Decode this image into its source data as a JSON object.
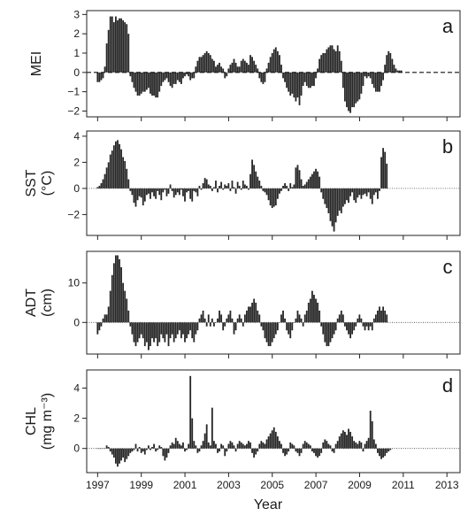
{
  "chart_data": [
    {
      "id": "a",
      "type": "bar",
      "panel_letter": "a",
      "ylabel": [
        "MEI"
      ],
      "ylim": [
        -2.3,
        3.2
      ],
      "yticks": [
        -2,
        -1,
        0,
        1,
        2,
        3
      ],
      "zero_line": "dashed",
      "series": [
        {
          "x_start": 1997.0,
          "x_step": 0.0833,
          "values": [
            -0.5,
            -0.5,
            -0.4,
            -0.3,
            0.3,
            1.5,
            2.2,
            2.9,
            2.9,
            2.6,
            2.9,
            2.7,
            2.8,
            2.8,
            2.7,
            2.6,
            2.5,
            2.0,
            -0.2,
            -0.5,
            -0.8,
            -1.0,
            -1.2,
            -1.2,
            -1.1,
            -1.0,
            -1.0,
            -0.9,
            -0.8,
            -1.1,
            -1.2,
            -1.2,
            -1.3,
            -1.3,
            -1.0,
            -0.7,
            -0.5,
            -0.4,
            -0.3,
            -0.5,
            -0.7,
            -0.8,
            -0.6,
            -0.6,
            -0.4,
            -0.5,
            -0.6,
            -0.3,
            -0.2,
            -0.1,
            -0.2,
            -0.4,
            -0.3,
            -0.3,
            0.3,
            0.6,
            0.8,
            0.8,
            0.9,
            1.0,
            1.1,
            1.0,
            0.9,
            0.7,
            0.6,
            0.3,
            0.4,
            0.5,
            0.3,
            0.2,
            -0.3,
            -0.2,
            0.2,
            0.4,
            0.5,
            0.7,
            0.5,
            0.3,
            0.3,
            0.6,
            0.7,
            0.6,
            0.5,
            0.4,
            0.9,
            0.8,
            0.6,
            0.4,
            0.2,
            -0.3,
            -0.5,
            -0.6,
            -0.5,
            0.2,
            0.5,
            0.8,
            1.0,
            1.2,
            1.3,
            1.1,
            0.9,
            0.4,
            -0.3,
            -0.5,
            -0.8,
            -1.0,
            -1.2,
            -1.1,
            -1.3,
            -1.5,
            -1.3,
            -1.7,
            -1.2,
            -0.7,
            -0.5,
            -0.7,
            -0.8,
            -0.8,
            -0.7,
            -0.7,
            -0.3,
            0.2,
            0.7,
            0.9,
            1.0,
            1.0,
            1.2,
            1.3,
            1.4,
            1.4,
            1.2,
            1.1,
            1.4,
            1.1,
            0.6,
            -0.8,
            -1.5,
            -1.8,
            -2.0,
            -2.1,
            -1.8,
            -1.8,
            -1.6,
            -1.5,
            -1.4,
            -1.1,
            -0.7,
            -0.2,
            -0.3,
            -0.2,
            -0.3,
            -0.6,
            -0.8,
            -1.0,
            -1.0,
            -1.0,
            -0.7,
            -0.4,
            0.4,
            0.9,
            1.1,
            1.0,
            0.7,
            0.4,
            0.2,
            0.1,
            0.1,
            0.1
          ]
        }
      ]
    },
    {
      "id": "b",
      "type": "bar",
      "panel_letter": "b",
      "ylabel": [
        "SST",
        "(°C)"
      ],
      "ylim": [
        -3.6,
        4.4
      ],
      "yticks": [
        -2,
        0,
        2,
        4
      ],
      "zero_line": "dotted",
      "series": [
        {
          "x_start": 1997.0,
          "x_step": 0.0833,
          "values": [
            0.1,
            0.2,
            0.4,
            0.7,
            1.1,
            1.6,
            2.0,
            2.6,
            2.9,
            3.3,
            3.6,
            3.7,
            3.4,
            3.0,
            2.4,
            2.1,
            1.5,
            0.7,
            -0.2,
            -0.5,
            -1.1,
            -1.4,
            -0.9,
            -0.6,
            -0.7,
            -1.3,
            -1.0,
            -0.5,
            -0.4,
            -0.8,
            -0.3,
            -0.6,
            -0.8,
            -0.2,
            -0.5,
            -0.9,
            -0.3,
            -0.1,
            -0.6,
            -0.4,
            0.3,
            -0.2,
            -0.7,
            -0.5,
            -0.3,
            -0.5,
            -0.1,
            -0.6,
            -1.0,
            -0.3,
            -0.2,
            -0.8,
            -1.0,
            -0.2,
            -0.3,
            -0.6,
            0.2,
            -0.1,
            0.4,
            0.8,
            0.7,
            0.3,
            0.2,
            -0.2,
            0.1,
            0.6,
            -0.3,
            0.2,
            0.5,
            -0.1,
            0.3,
            0.2,
            0.4,
            -0.2,
            0.6,
            0.1,
            -0.4,
            0.5,
            0.2,
            -0.1,
            0.6,
            0.3,
            0.2,
            -0.1,
            1.1,
            2.2,
            1.8,
            1.3,
            0.9,
            0.6,
            0.2,
            -0.2,
            -0.3,
            -0.5,
            -0.9,
            -1.3,
            -1.5,
            -1.4,
            -1.3,
            -0.8,
            -0.4,
            -0.2,
            0.2,
            0.4,
            0.2,
            -0.2,
            0.4,
            0.1,
            0.3,
            1.6,
            1.8,
            1.4,
            0.7,
            0.2,
            0.3,
            0.5,
            0.7,
            0.9,
            1.1,
            1.3,
            1.5,
            1.3,
            0.9,
            -0.3,
            -0.8,
            -1.2,
            -1.5,
            -1.9,
            -2.5,
            -2.9,
            -3.3,
            -2.6,
            -2.1,
            -1.7,
            -1.9,
            -1.4,
            -1.2,
            -0.9,
            -1.1,
            -0.6,
            -0.3,
            -0.9,
            -1.1,
            -0.7,
            -0.5,
            -0.8,
            -0.5,
            -0.4,
            -0.6,
            -0.3,
            -0.8,
            -1.2,
            -0.5,
            -0.3,
            -0.8,
            -0.2,
            2.4,
            3.1,
            2.8,
            1.9
          ]
        }
      ]
    },
    {
      "id": "c",
      "type": "bar",
      "panel_letter": "c",
      "ylabel": [
        "ADT",
        "(cm)"
      ],
      "ylim": [
        -8,
        18
      ],
      "yticks": [
        0,
        10
      ],
      "zero_line": "dotted",
      "series": [
        {
          "x_start": 1997.0,
          "x_step": 0.0833,
          "values": [
            -3,
            -2,
            -1,
            1,
            2,
            2,
            4,
            8,
            12,
            15,
            17,
            17,
            16,
            14,
            10,
            8,
            6,
            3,
            -1,
            -3,
            -5,
            -6,
            -5,
            -4,
            -3,
            -4,
            -6,
            -5,
            -7,
            -6,
            -4,
            -5,
            -4,
            -6,
            -5,
            -3,
            -4,
            -5,
            -3,
            -6,
            -4,
            -3,
            -5,
            -4,
            -3,
            -2,
            -4,
            -3,
            -5,
            -4,
            -3,
            -2,
            -4,
            -5,
            -3,
            -2,
            1,
            2,
            3,
            1,
            -1,
            2,
            -1,
            1,
            -1,
            0,
            1,
            3,
            2,
            -2,
            -1,
            1,
            2,
            3,
            1,
            -3,
            -2,
            1,
            2,
            1,
            -1,
            2,
            3,
            4,
            4,
            5,
            6,
            5,
            3,
            2,
            -1,
            -2,
            -4,
            -5,
            -6,
            -6,
            -5,
            -4,
            -3,
            -2,
            0,
            2,
            3,
            1,
            -2,
            -3,
            -4,
            -2,
            0,
            1,
            3,
            2,
            1,
            -1,
            2,
            3,
            5,
            6,
            8,
            7,
            6,
            5,
            3,
            -1,
            -3,
            -5,
            -6,
            -6,
            -5,
            -4,
            -3,
            -2,
            1,
            2,
            3,
            2,
            -1,
            -2,
            -3,
            -4,
            -3,
            -2,
            -1,
            1,
            2,
            1,
            -1,
            -2,
            -1,
            -2,
            -1,
            -2,
            1,
            2,
            3,
            4,
            3,
            4,
            3,
            2
          ]
        }
      ]
    },
    {
      "id": "d",
      "type": "bar",
      "panel_letter": "d",
      "ylabel": [
        "CHL",
        "(mg m⁻³)"
      ],
      "ylim": [
        -1.6,
        5.2
      ],
      "yticks": [
        0,
        2,
        4
      ],
      "zero_line": "dotted",
      "series": [
        {
          "x_start": 1997.0,
          "x_step": 0.0833,
          "values": [
            0,
            0,
            0,
            0,
            0,
            0.2,
            0.1,
            -0.2,
            -0.4,
            -0.6,
            -1.0,
            -1.2,
            -1.0,
            -0.8,
            -0.6,
            -0.9,
            -0.7,
            -0.5,
            -0.3,
            -0.2,
            -0.1,
            0.3,
            -0.2,
            0.1,
            -0.3,
            -0.2,
            -0.4,
            -0.1,
            0.2,
            -0.1,
            0.1,
            0.3,
            -0.2,
            -0.1,
            0.2,
            0.1,
            -0.5,
            -0.8,
            -0.6,
            -0.3,
            0.2,
            0.4,
            0.3,
            0.7,
            0.5,
            0.3,
            0.2,
            0.4,
            -0.2,
            -0.1,
            0.3,
            4.8,
            2.0,
            0.5,
            0.2,
            -0.3,
            -0.2,
            0.2,
            0.5,
            1.0,
            1.6,
            0.4,
            0.2,
            2.7,
            0.5,
            0.3,
            -0.3,
            -0.2,
            0.3,
            0.2,
            -0.5,
            -0.2,
            0.3,
            0.5,
            0.4,
            0.2,
            -0.2,
            0.3,
            0.5,
            0.4,
            0.3,
            0.2,
            0.3,
            0.5,
            0.4,
            -0.3,
            -0.6,
            -0.4,
            -0.2,
            0.3,
            0.5,
            0.4,
            0.3,
            0.6,
            0.8,
            1.0,
            1.2,
            1.4,
            1.1,
            0.8,
            0.5,
            0.3,
            -0.3,
            -0.5,
            -0.4,
            -0.2,
            0.4,
            0.3,
            0.2,
            -0.2,
            -0.3,
            -0.5,
            -0.3,
            0.3,
            0.5,
            0.4,
            0.3,
            0.2,
            -0.2,
            -0.3,
            -0.5,
            -0.6,
            -0.5,
            -0.3,
            0.4,
            0.6,
            0.5,
            0.3,
            0.2,
            -0.2,
            -0.3,
            0.3,
            0.5,
            0.8,
            1.0,
            1.2,
            1.1,
            0.9,
            1.3,
            1.1,
            0.8,
            0.5,
            0.4,
            0.3,
            0.5,
            0.4,
            -0.2,
            0.3,
            0.5,
            0.7,
            2.5,
            1.8,
            0.6,
            0.3,
            -0.3,
            -0.5,
            -0.7,
            -0.6,
            -0.5,
            -0.3,
            -0.2,
            -0.1
          ]
        }
      ]
    }
  ],
  "x_axis": {
    "label": "Year",
    "xlim": [
      1996.5,
      2013.6
    ],
    "ticks": [
      1997,
      1999,
      2001,
      2003,
      2005,
      2007,
      2009,
      2011,
      2013
    ],
    "tick_labels": [
      "1997",
      "1999",
      "2001",
      "2003",
      "2005",
      "2007",
      "2009",
      "2011",
      "2013"
    ]
  }
}
